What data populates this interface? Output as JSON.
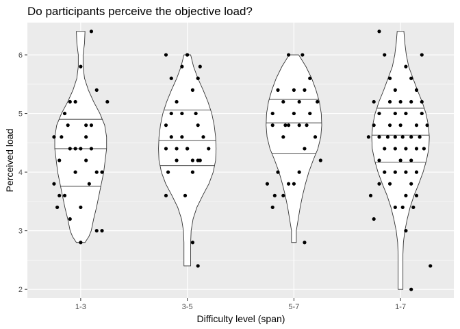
{
  "chart_data": {
    "type": "violin",
    "title": "Do participants perceive the objective load?",
    "xlabel": "Difficulty level (span)",
    "ylabel": "Perceived load",
    "categories": [
      "1-3",
      "3-5",
      "5-7",
      "1-7"
    ],
    "yticks": [
      2,
      3,
      4,
      5,
      6
    ],
    "ylim": [
      1.85,
      6.55
    ],
    "grid": true,
    "background": "#ebebeb",
    "violins": [
      {
        "category": "1-3",
        "quantiles": [
          3.76,
          4.4,
          4.9
        ],
        "density": [
          [
            2.8,
            0.09
          ],
          [
            2.9,
            0.17
          ],
          [
            3.0,
            0.22
          ],
          [
            3.2,
            0.27
          ],
          [
            3.4,
            0.33
          ],
          [
            3.6,
            0.38
          ],
          [
            3.8,
            0.43
          ],
          [
            4.0,
            0.48
          ],
          [
            4.2,
            0.51
          ],
          [
            4.4,
            0.54
          ],
          [
            4.6,
            0.54
          ],
          [
            4.8,
            0.5
          ],
          [
            5.0,
            0.4
          ],
          [
            5.2,
            0.27
          ],
          [
            5.4,
            0.16
          ],
          [
            5.6,
            0.08
          ],
          [
            5.8,
            0.05
          ],
          [
            6.0,
            0.05
          ],
          [
            6.2,
            0.08
          ],
          [
            6.4,
            0.09
          ]
        ],
        "points": [
          [
            -0.18,
            4.6
          ],
          [
            -0.12,
            4.8
          ],
          [
            0.05,
            4.6
          ],
          [
            0.1,
            4.8
          ],
          [
            -0.25,
            4.6
          ],
          [
            0.25,
            5.2
          ],
          [
            0.1,
            4.4
          ],
          [
            -0.05,
            4.4
          ],
          [
            0.2,
            4.0
          ],
          [
            0.15,
            5.4
          ],
          [
            -0.2,
            3.6
          ],
          [
            -0.15,
            3.6
          ],
          [
            0.2,
            3.0
          ],
          [
            -0.05,
            4.0
          ],
          [
            0.05,
            4.2
          ],
          [
            0.15,
            3.0
          ],
          [
            0.0,
            5.8
          ],
          [
            0.1,
            6.4
          ],
          [
            -0.1,
            3.2
          ],
          [
            0.0,
            3.4
          ],
          [
            -0.22,
            3.4
          ],
          [
            0.0,
            2.8
          ],
          [
            -0.1,
            5.2
          ],
          [
            -0.2,
            4.2
          ],
          [
            0.08,
            3.8
          ],
          [
            -0.05,
            5.2
          ],
          [
            0.15,
            4.0
          ],
          [
            0.05,
            4.8
          ],
          [
            0.0,
            4.4
          ],
          [
            -0.1,
            4.4
          ],
          [
            -0.15,
            5.0
          ],
          [
            -0.25,
            3.8
          ]
        ]
      },
      {
        "category": "3-5",
        "quantiles": [
          4.11,
          4.54,
          5.06
        ],
        "density": [
          [
            2.4,
            0.07
          ],
          [
            2.6,
            0.07
          ],
          [
            2.8,
            0.07
          ],
          [
            3.0,
            0.08
          ],
          [
            3.2,
            0.12
          ],
          [
            3.4,
            0.2
          ],
          [
            3.6,
            0.32
          ],
          [
            3.8,
            0.45
          ],
          [
            4.0,
            0.54
          ],
          [
            4.2,
            0.59
          ],
          [
            4.4,
            0.6
          ],
          [
            4.6,
            0.59
          ],
          [
            4.8,
            0.56
          ],
          [
            5.0,
            0.51
          ],
          [
            5.2,
            0.43
          ],
          [
            5.4,
            0.33
          ],
          [
            5.6,
            0.22
          ],
          [
            5.8,
            0.13
          ],
          [
            6.0,
            0.07
          ]
        ],
        "points": [
          [
            -0.2,
            6.0
          ],
          [
            0.0,
            6.0
          ],
          [
            -0.05,
            5.8
          ],
          [
            0.12,
            5.8
          ],
          [
            0.1,
            5.6
          ],
          [
            -0.15,
            5.6
          ],
          [
            0.05,
            5.4
          ],
          [
            -0.1,
            5.2
          ],
          [
            -0.05,
            5.0
          ],
          [
            0.08,
            5.0
          ],
          [
            -0.2,
            4.8
          ],
          [
            0.1,
            4.8
          ],
          [
            -0.15,
            4.6
          ],
          [
            -0.05,
            4.6
          ],
          [
            0.15,
            4.6
          ],
          [
            -0.2,
            4.4
          ],
          [
            0.0,
            4.4
          ],
          [
            0.2,
            4.4
          ],
          [
            -0.1,
            4.2
          ],
          [
            0.05,
            4.2
          ],
          [
            0.1,
            4.2
          ],
          [
            -0.18,
            4.0
          ],
          [
            0.05,
            4.0
          ],
          [
            -0.2,
            3.6
          ],
          [
            -0.02,
            3.6
          ],
          [
            0.0,
            4.4
          ],
          [
            0.05,
            2.8
          ],
          [
            0.1,
            2.4
          ],
          [
            0.12,
            4.2
          ],
          [
            -0.15,
            5.0
          ],
          [
            0.0,
            6.0
          ],
          [
            -0.1,
            4.4
          ]
        ]
      },
      {
        "category": "5-7",
        "quantiles": [
          4.32,
          4.84,
          5.24
        ],
        "density": [
          [
            2.8,
            0.05
          ],
          [
            3.0,
            0.05
          ],
          [
            3.2,
            0.09
          ],
          [
            3.4,
            0.13
          ],
          [
            3.6,
            0.18
          ],
          [
            3.8,
            0.24
          ],
          [
            4.0,
            0.31
          ],
          [
            4.2,
            0.4
          ],
          [
            4.4,
            0.5
          ],
          [
            4.6,
            0.56
          ],
          [
            4.8,
            0.58
          ],
          [
            5.0,
            0.57
          ],
          [
            5.2,
            0.53
          ],
          [
            5.4,
            0.46
          ],
          [
            5.6,
            0.37
          ],
          [
            5.8,
            0.25
          ],
          [
            6.0,
            0.1
          ]
        ],
        "points": [
          [
            -0.05,
            6.0
          ],
          [
            0.08,
            6.0
          ],
          [
            -0.15,
            5.4
          ],
          [
            0.0,
            5.4
          ],
          [
            0.1,
            5.4
          ],
          [
            -0.1,
            5.2
          ],
          [
            0.05,
            5.2
          ],
          [
            -0.2,
            5.0
          ],
          [
            0.0,
            5.0
          ],
          [
            0.15,
            5.0
          ],
          [
            -0.2,
            4.8
          ],
          [
            -0.05,
            4.8
          ],
          [
            0.05,
            4.8
          ],
          [
            0.12,
            4.8
          ],
          [
            -0.1,
            4.6
          ],
          [
            0.2,
            4.6
          ],
          [
            0.1,
            4.4
          ],
          [
            0.25,
            4.2
          ],
          [
            -0.15,
            4.0
          ],
          [
            -0.05,
            3.8
          ],
          [
            -0.1,
            3.6
          ],
          [
            -0.2,
            3.4
          ],
          [
            0.1,
            2.8
          ],
          [
            -0.18,
            3.6
          ],
          [
            0.0,
            3.8
          ],
          [
            0.15,
            5.6
          ],
          [
            -0.08,
            4.8
          ],
          [
            0.05,
            4.0
          ],
          [
            0.22,
            5.2
          ],
          [
            -0.25,
            3.8
          ]
        ]
      },
      {
        "category": "1-7",
        "quantiles": [
          4.17,
          4.63,
          5.09
        ],
        "density": [
          [
            2.0,
            0.05
          ],
          [
            2.2,
            0.05
          ],
          [
            2.4,
            0.05
          ],
          [
            2.6,
            0.05
          ],
          [
            2.8,
            0.06
          ],
          [
            3.0,
            0.09
          ],
          [
            3.2,
            0.14
          ],
          [
            3.4,
            0.2
          ],
          [
            3.6,
            0.28
          ],
          [
            3.8,
            0.38
          ],
          [
            4.0,
            0.47
          ],
          [
            4.2,
            0.54
          ],
          [
            4.4,
            0.59
          ],
          [
            4.6,
            0.6
          ],
          [
            4.8,
            0.58
          ],
          [
            5.0,
            0.53
          ],
          [
            5.2,
            0.45
          ],
          [
            5.4,
            0.35
          ],
          [
            5.6,
            0.26
          ],
          [
            5.8,
            0.17
          ],
          [
            6.0,
            0.12
          ],
          [
            6.2,
            0.09
          ],
          [
            6.4,
            0.07
          ]
        ],
        "points": [
          [
            -0.2,
            6.4
          ],
          [
            -0.15,
            6.0
          ],
          [
            0.05,
            5.8
          ],
          [
            0.2,
            6.0
          ],
          [
            -0.1,
            5.6
          ],
          [
            0.1,
            5.6
          ],
          [
            -0.05,
            5.4
          ],
          [
            0.15,
            5.4
          ],
          [
            -0.25,
            5.2
          ],
          [
            -0.1,
            5.2
          ],
          [
            0.0,
            5.2
          ],
          [
            0.1,
            5.2
          ],
          [
            0.2,
            5.2
          ],
          [
            -0.2,
            5.0
          ],
          [
            -0.05,
            5.0
          ],
          [
            0.05,
            5.0
          ],
          [
            -0.25,
            4.8
          ],
          [
            -0.1,
            4.8
          ],
          [
            0.0,
            4.8
          ],
          [
            0.15,
            4.8
          ],
          [
            0.25,
            4.8
          ],
          [
            -0.3,
            4.6
          ],
          [
            -0.2,
            4.6
          ],
          [
            -0.12,
            4.6
          ],
          [
            -0.05,
            4.6
          ],
          [
            0.02,
            4.6
          ],
          [
            0.1,
            4.6
          ],
          [
            0.18,
            4.6
          ],
          [
            -0.15,
            4.4
          ],
          [
            -0.05,
            4.4
          ],
          [
            0.05,
            4.4
          ],
          [
            0.15,
            4.4
          ],
          [
            0.22,
            4.4
          ],
          [
            -0.2,
            4.2
          ],
          [
            0.0,
            4.2
          ],
          [
            0.1,
            4.2
          ],
          [
            -0.15,
            4.0
          ],
          [
            -0.05,
            4.0
          ],
          [
            0.05,
            4.0
          ],
          [
            0.15,
            4.0
          ],
          [
            -0.1,
            3.8
          ],
          [
            0.1,
            3.8
          ],
          [
            -0.28,
            3.6
          ],
          [
            0.05,
            3.6
          ],
          [
            0.15,
            3.6
          ],
          [
            -0.05,
            3.4
          ],
          [
            0.02,
            3.4
          ],
          [
            0.12,
            3.4
          ],
          [
            -0.25,
            3.2
          ],
          [
            0.28,
            2.4
          ],
          [
            0.1,
            2.0
          ],
          [
            0.05,
            3.0
          ],
          [
            -0.2,
            3.8
          ],
          [
            0.2,
            5.0
          ]
        ]
      }
    ]
  }
}
